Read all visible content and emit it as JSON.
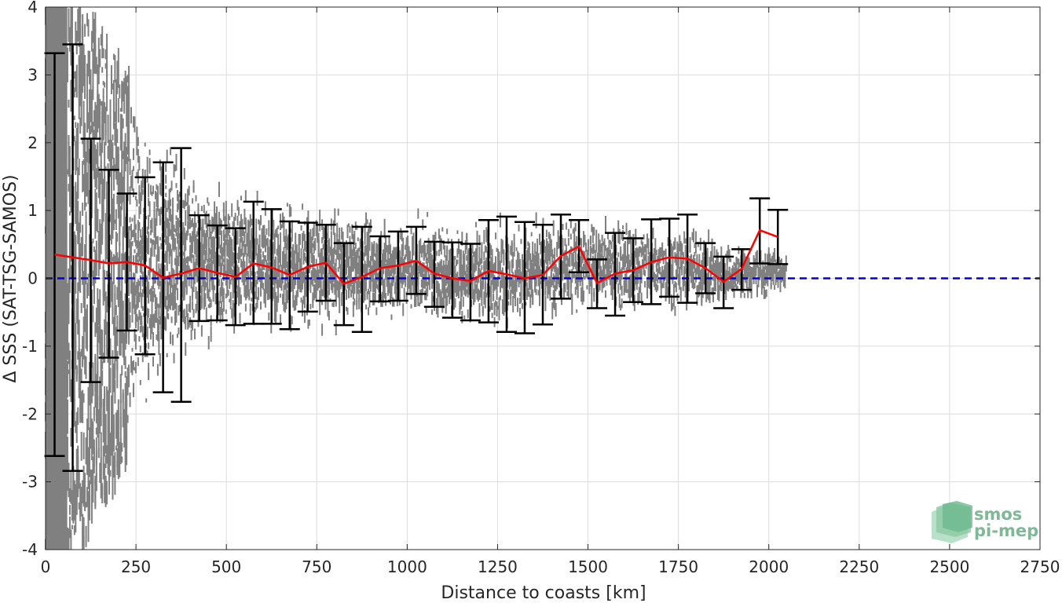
{
  "chart_data": {
    "type": "scatter",
    "title": "",
    "xlabel": "Distance to coasts [km]",
    "ylabel": "Δ SSS (SAT-TSG-SAMOS)",
    "xlim": [
      0,
      2750
    ],
    "ylim": [
      -4,
      4
    ],
    "x_ticks": [
      0,
      250,
      500,
      750,
      1000,
      1250,
      1500,
      1750,
      2000,
      2250,
      2500,
      2750
    ],
    "y_ticks": [
      -4,
      -3,
      -2,
      -1,
      0,
      1,
      2,
      3,
      4
    ],
    "grid": true,
    "legend": "none",
    "colors": {
      "scatter": "#808080",
      "mean_line": "#ff0000",
      "errorbar": "#000000",
      "zero_line": "#0000dd",
      "grid": "#dcdcdc"
    },
    "zero_reference": 0,
    "binned_stats": {
      "x": [
        25,
        75,
        125,
        175,
        225,
        275,
        325,
        375,
        425,
        475,
        525,
        575,
        625,
        675,
        725,
        775,
        825,
        875,
        925,
        975,
        1025,
        1075,
        1125,
        1175,
        1225,
        1275,
        1325,
        1375,
        1425,
        1475,
        1525,
        1575,
        1625,
        1675,
        1725,
        1775,
        1825,
        1875,
        1925,
        1975,
        2025
      ],
      "mean": [
        0.35,
        0.31,
        0.27,
        0.22,
        0.24,
        0.19,
        0.01,
        0.07,
        0.15,
        0.08,
        0.02,
        0.22,
        0.16,
        0.05,
        0.17,
        0.23,
        -0.08,
        0.02,
        0.15,
        0.19,
        0.26,
        0.07,
        0.0,
        -0.04,
        0.11,
        0.06,
        0.0,
        0.05,
        0.33,
        0.47,
        -0.07,
        0.07,
        0.12,
        0.24,
        0.31,
        0.29,
        0.15,
        -0.05,
        0.14,
        0.71,
        0.61
      ],
      "upper": [
        3.32,
        3.45,
        2.06,
        1.6,
        1.25,
        1.49,
        1.71,
        1.92,
        0.93,
        0.78,
        0.74,
        1.13,
        1.02,
        0.84,
        0.82,
        0.79,
        0.52,
        0.76,
        0.62,
        0.69,
        0.76,
        0.54,
        0.53,
        0.51,
        0.86,
        0.91,
        0.83,
        0.79,
        0.94,
        0.86,
        0.28,
        0.67,
        0.59,
        0.87,
        0.88,
        0.94,
        0.52,
        0.32,
        0.43,
        1.18,
        1.01
      ],
      "lower": [
        -2.62,
        -2.84,
        -1.53,
        -1.17,
        -0.77,
        -1.12,
        -1.68,
        -1.82,
        -0.63,
        -0.62,
        -0.69,
        -0.67,
        -0.67,
        -0.75,
        -0.49,
        -0.33,
        -0.69,
        -0.79,
        -0.34,
        -0.33,
        -0.23,
        -0.42,
        -0.58,
        -0.62,
        -0.65,
        -0.79,
        -0.81,
        -0.68,
        -0.3,
        0.09,
        -0.44,
        -0.55,
        -0.35,
        -0.38,
        -0.27,
        -0.36,
        -0.22,
        -0.44,
        -0.17,
        0.22,
        0.21
      ]
    },
    "scatter_envelope": {
      "x": [
        0,
        100,
        200,
        300,
        400,
        500,
        600,
        700,
        800,
        900,
        1000,
        1100,
        1200,
        1300,
        1400,
        1500,
        1600,
        1700,
        1800,
        1900,
        2000,
        2050
      ],
      "upper": [
        4.0,
        4.0,
        3.2,
        2.4,
        1.8,
        1.5,
        1.3,
        1.2,
        1.1,
        1.0,
        1.0,
        0.95,
        0.95,
        0.95,
        0.95,
        0.95,
        0.95,
        0.9,
        0.75,
        0.55,
        0.5,
        0.4
      ],
      "lower": [
        -4.0,
        -4.0,
        -2.8,
        -1.9,
        -1.3,
        -1.0,
        -0.9,
        -0.85,
        -0.8,
        -0.75,
        -0.7,
        -0.75,
        -0.8,
        -0.85,
        -0.7,
        -0.5,
        -0.6,
        -0.55,
        -0.5,
        -0.45,
        -0.3,
        -0.2
      ],
      "density": [
        1.0,
        1.0,
        0.95,
        0.8,
        0.65,
        0.55,
        0.5,
        0.45,
        0.42,
        0.4,
        0.38,
        0.36,
        0.34,
        0.3,
        0.3,
        0.28,
        0.26,
        0.24,
        0.22,
        0.2,
        0.15,
        0.08
      ]
    }
  },
  "logo": {
    "line1": "smos",
    "line2": "pi-mep"
  }
}
